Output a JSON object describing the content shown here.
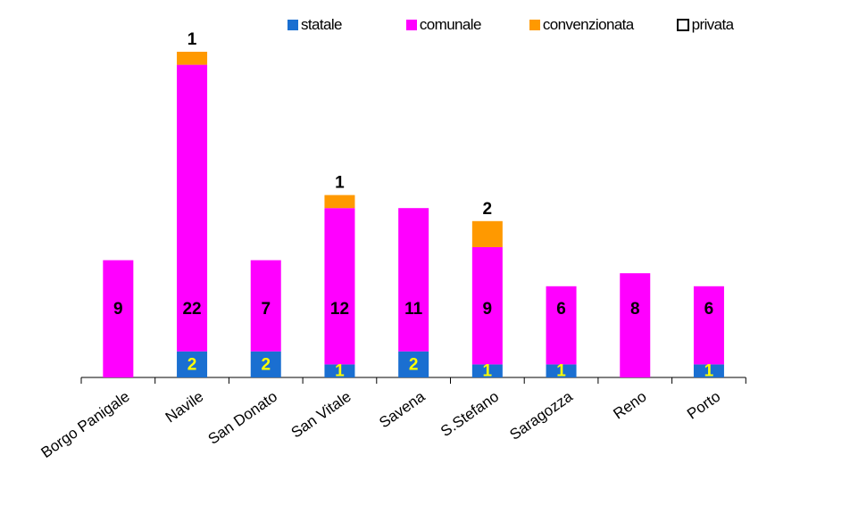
{
  "chart_data": {
    "type": "bar",
    "stacked": true,
    "categories": [
      "Borgo Panigale",
      "Navile",
      "San Donato",
      "San Vitale",
      "Savena",
      "S.Stefano",
      "Saragozza",
      "Reno",
      "Porto"
    ],
    "series": [
      {
        "name": "statale",
        "color": "#1a6fd1",
        "values": [
          0,
          2,
          2,
          1,
          2,
          1,
          1,
          0,
          1
        ]
      },
      {
        "name": "comunale",
        "color": "#ff00ff",
        "values": [
          9,
          22,
          7,
          12,
          11,
          9,
          6,
          8,
          6
        ]
      },
      {
        "name": "convenzionata",
        "color": "#ff9900",
        "values": [
          0,
          1,
          0,
          1,
          0,
          2,
          0,
          0,
          0
        ]
      },
      {
        "name": "privata",
        "color": "#ffffff",
        "values": [
          0,
          0,
          0,
          0,
          0,
          0,
          0,
          0,
          0
        ]
      }
    ],
    "data_labels": {
      "statale": [
        "",
        "2",
        "2",
        "1",
        "2",
        "1",
        "1",
        "",
        "1"
      ],
      "comunale": [
        "9",
        "22",
        "7",
        "12",
        "11",
        "9",
        "6",
        "8",
        "6"
      ],
      "convenzionata": [
        "",
        "1",
        "",
        "1",
        "",
        "2",
        "",
        "",
        ""
      ]
    },
    "legend_position": "top",
    "grid": false,
    "ylim": [
      0,
      25
    ],
    "title": "",
    "xlabel": "",
    "ylabel": ""
  }
}
